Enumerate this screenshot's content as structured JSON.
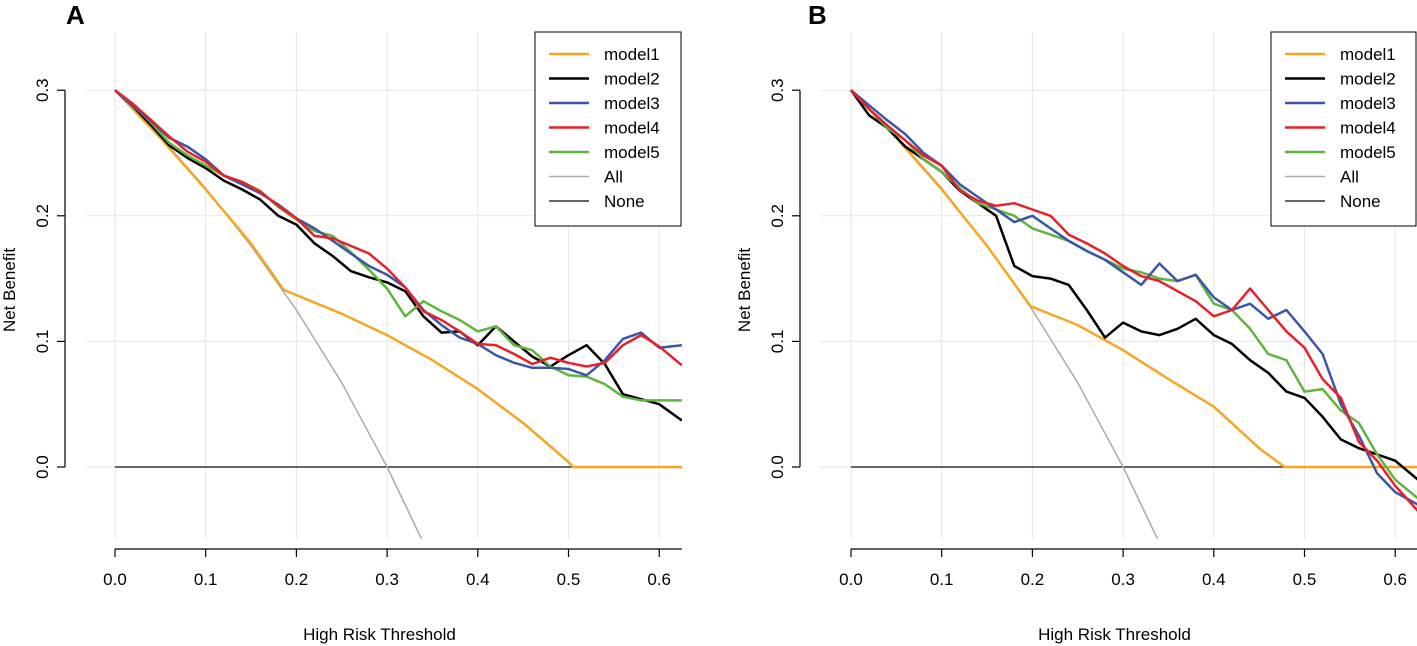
{
  "chart_data": [
    {
      "type": "line",
      "panel_label": "A",
      "xlabel": "High Risk Threshold",
      "ylabel": "Net Benefit",
      "xlim": [
        0.0,
        0.625
      ],
      "ylim": [
        -0.065,
        0.33
      ],
      "xticks": [
        0.0,
        0.1,
        0.2,
        0.3,
        0.4,
        0.5,
        0.6
      ],
      "xtick_labels": [
        "0.0",
        "0.1",
        "0.2",
        "0.3",
        "0.4",
        "0.5",
        "0.6"
      ],
      "yticks": [
        0.0,
        0.1,
        0.2,
        0.3
      ],
      "ytick_labels": [
        "0.0",
        "0.1",
        "0.2",
        "0.3"
      ],
      "grid": true,
      "legend_position": "top-right",
      "series": [
        {
          "name": "model1",
          "color": "#F5A623",
          "width": 2.5,
          "x": [
            0,
            0.05,
            0.1,
            0.15,
            0.186,
            0.25,
            0.3,
            0.35,
            0.4,
            0.45,
            0.5,
            0.505,
            0.625
          ],
          "y": [
            0.3,
            0.262,
            0.221,
            0.178,
            0.141,
            0.122,
            0.105,
            0.085,
            0.062,
            0.035,
            0.004,
            0,
            0
          ]
        },
        {
          "name": "model2",
          "color": "#000000",
          "width": 2.5,
          "x": [
            0,
            0.02,
            0.04,
            0.06,
            0.08,
            0.1,
            0.12,
            0.14,
            0.16,
            0.18,
            0.2,
            0.22,
            0.24,
            0.26,
            0.28,
            0.3,
            0.32,
            0.34,
            0.36,
            0.38,
            0.4,
            0.42,
            0.44,
            0.46,
            0.48,
            0.5,
            0.52,
            0.54,
            0.56,
            0.58,
            0.6,
            0.625
          ],
          "y": [
            0.3,
            0.287,
            0.272,
            0.256,
            0.246,
            0.238,
            0.228,
            0.221,
            0.213,
            0.2,
            0.193,
            0.178,
            0.168,
            0.156,
            0.151,
            0.147,
            0.14,
            0.12,
            0.107,
            0.108,
            0.097,
            0.112,
            0.1,
            0.088,
            0.08,
            0.089,
            0.097,
            0.082,
            0.058,
            0.054,
            0.05,
            0.037
          ]
        },
        {
          "name": "model3",
          "color": "#3B56A8",
          "width": 2.5,
          "x": [
            0,
            0.02,
            0.04,
            0.06,
            0.08,
            0.1,
            0.12,
            0.14,
            0.16,
            0.18,
            0.2,
            0.22,
            0.24,
            0.26,
            0.28,
            0.3,
            0.32,
            0.34,
            0.36,
            0.38,
            0.4,
            0.42,
            0.44,
            0.46,
            0.48,
            0.5,
            0.52,
            0.54,
            0.56,
            0.58,
            0.6,
            0.625
          ],
          "y": [
            0.3,
            0.287,
            0.275,
            0.262,
            0.255,
            0.245,
            0.232,
            0.225,
            0.218,
            0.209,
            0.198,
            0.19,
            0.18,
            0.17,
            0.16,
            0.153,
            0.143,
            0.125,
            0.113,
            0.103,
            0.098,
            0.089,
            0.083,
            0.079,
            0.079,
            0.078,
            0.073,
            0.085,
            0.102,
            0.107,
            0.095,
            0.097
          ]
        },
        {
          "name": "model4",
          "color": "#E8202A",
          "width": 2.5,
          "x": [
            0,
            0.02,
            0.04,
            0.06,
            0.08,
            0.1,
            0.12,
            0.14,
            0.16,
            0.18,
            0.2,
            0.22,
            0.24,
            0.26,
            0.28,
            0.3,
            0.32,
            0.34,
            0.36,
            0.38,
            0.4,
            0.42,
            0.44,
            0.46,
            0.48,
            0.5,
            0.52,
            0.54,
            0.56,
            0.58,
            0.6,
            0.625
          ],
          "y": [
            0.3,
            0.289,
            0.276,
            0.263,
            0.251,
            0.243,
            0.232,
            0.227,
            0.219,
            0.208,
            0.198,
            0.184,
            0.182,
            0.176,
            0.17,
            0.158,
            0.143,
            0.124,
            0.117,
            0.108,
            0.098,
            0.097,
            0.09,
            0.082,
            0.087,
            0.083,
            0.08,
            0.083,
            0.097,
            0.105,
            0.096,
            0.081
          ]
        },
        {
          "name": "model5",
          "color": "#5DB53E",
          "width": 2.5,
          "x": [
            0,
            0.02,
            0.04,
            0.06,
            0.08,
            0.1,
            0.12,
            0.14,
            0.16,
            0.18,
            0.2,
            0.22,
            0.24,
            0.26,
            0.28,
            0.3,
            0.32,
            0.34,
            0.36,
            0.38,
            0.4,
            0.42,
            0.44,
            0.46,
            0.48,
            0.5,
            0.52,
            0.54,
            0.56,
            0.58,
            0.6,
            0.625
          ],
          "y": [
            0.3,
            0.288,
            0.274,
            0.258,
            0.248,
            0.24,
            0.232,
            0.227,
            0.22,
            0.207,
            0.197,
            0.188,
            0.184,
            0.171,
            0.157,
            0.142,
            0.12,
            0.132,
            0.124,
            0.117,
            0.108,
            0.112,
            0.097,
            0.093,
            0.08,
            0.073,
            0.072,
            0.066,
            0.056,
            0.053,
            0.053,
            0.053
          ]
        },
        {
          "name": "All",
          "color": "#AAAAAA",
          "width": 1.5,
          "x": [
            0,
            0.05,
            0.1,
            0.15,
            0.2,
            0.25,
            0.3,
            0.343
          ],
          "y": [
            0.3,
            0.263,
            0.222,
            0.176,
            0.125,
            0.067,
            0,
            -0.065
          ]
        },
        {
          "name": "None",
          "color": "#333333",
          "width": 1.5,
          "x": [
            0,
            0.625
          ],
          "y": [
            0,
            0
          ]
        }
      ]
    },
    {
      "type": "line",
      "panel_label": "B",
      "xlabel": "High Risk Threshold",
      "ylabel": "Net Benefit",
      "xlim": [
        0.0,
        0.625
      ],
      "ylim": [
        -0.065,
        0.33
      ],
      "xticks": [
        0.0,
        0.1,
        0.2,
        0.3,
        0.4,
        0.5,
        0.6
      ],
      "xtick_labels": [
        "0.0",
        "0.1",
        "0.2",
        "0.3",
        "0.4",
        "0.5",
        "0.6"
      ],
      "yticks": [
        0.0,
        0.1,
        0.2,
        0.3
      ],
      "ytick_labels": [
        "0.0",
        "0.1",
        "0.2",
        "0.3"
      ],
      "grid": true,
      "legend_position": "top-right",
      "series": [
        {
          "name": "model1",
          "color": "#F5A623",
          "width": 2.5,
          "x": [
            0,
            0.05,
            0.1,
            0.15,
            0.198,
            0.25,
            0.3,
            0.35,
            0.4,
            0.45,
            0.478,
            0.625
          ],
          "y": [
            0.3,
            0.262,
            0.221,
            0.176,
            0.128,
            0.113,
            0.093,
            0.07,
            0.048,
            0.015,
            0,
            0
          ]
        },
        {
          "name": "model2",
          "color": "#000000",
          "width": 2.5,
          "x": [
            0,
            0.02,
            0.04,
            0.06,
            0.08,
            0.1,
            0.12,
            0.14,
            0.16,
            0.18,
            0.2,
            0.22,
            0.24,
            0.26,
            0.28,
            0.3,
            0.32,
            0.34,
            0.36,
            0.38,
            0.4,
            0.42,
            0.44,
            0.46,
            0.48,
            0.5,
            0.52,
            0.54,
            0.56,
            0.58,
            0.6,
            0.625
          ],
          "y": [
            0.3,
            0.28,
            0.27,
            0.255,
            0.245,
            0.235,
            0.22,
            0.21,
            0.2,
            0.16,
            0.152,
            0.15,
            0.145,
            0.125,
            0.103,
            0.115,
            0.108,
            0.105,
            0.11,
            0.118,
            0.105,
            0.098,
            0.085,
            0.075,
            0.06,
            0.055,
            0.04,
            0.022,
            0.015,
            0.01,
            0.005,
            -0.01
          ]
        },
        {
          "name": "model3",
          "color": "#3B56A8",
          "width": 2.5,
          "x": [
            0,
            0.02,
            0.04,
            0.06,
            0.08,
            0.1,
            0.12,
            0.14,
            0.16,
            0.18,
            0.2,
            0.22,
            0.24,
            0.26,
            0.28,
            0.3,
            0.32,
            0.34,
            0.36,
            0.38,
            0.4,
            0.42,
            0.44,
            0.46,
            0.48,
            0.5,
            0.52,
            0.54,
            0.56,
            0.58,
            0.6,
            0.625
          ],
          "y": [
            0.3,
            0.288,
            0.276,
            0.265,
            0.25,
            0.24,
            0.225,
            0.215,
            0.205,
            0.195,
            0.2,
            0.19,
            0.18,
            0.172,
            0.165,
            0.155,
            0.145,
            0.162,
            0.148,
            0.153,
            0.135,
            0.125,
            0.13,
            0.118,
            0.125,
            0.108,
            0.09,
            0.05,
            0.025,
            -0.005,
            -0.02,
            -0.03
          ]
        },
        {
          "name": "model4",
          "color": "#E8202A",
          "width": 2.5,
          "x": [
            0,
            0.02,
            0.04,
            0.06,
            0.08,
            0.1,
            0.12,
            0.14,
            0.16,
            0.18,
            0.2,
            0.22,
            0.24,
            0.26,
            0.28,
            0.3,
            0.32,
            0.34,
            0.36,
            0.38,
            0.4,
            0.42,
            0.44,
            0.46,
            0.48,
            0.5,
            0.52,
            0.54,
            0.56,
            0.58,
            0.6,
            0.625
          ],
          "y": [
            0.3,
            0.285,
            0.272,
            0.26,
            0.248,
            0.24,
            0.22,
            0.212,
            0.208,
            0.21,
            0.205,
            0.2,
            0.185,
            0.178,
            0.17,
            0.16,
            0.152,
            0.148,
            0.14,
            0.132,
            0.12,
            0.125,
            0.142,
            0.125,
            0.108,
            0.095,
            0.07,
            0.055,
            0.02,
            0.005,
            -0.015,
            -0.035
          ]
        },
        {
          "name": "model5",
          "color": "#5DB53E",
          "width": 2.5,
          "x": [
            0,
            0.02,
            0.04,
            0.06,
            0.08,
            0.1,
            0.12,
            0.14,
            0.16,
            0.18,
            0.2,
            0.22,
            0.24,
            0.26,
            0.28,
            0.3,
            0.32,
            0.34,
            0.36,
            0.38,
            0.4,
            0.42,
            0.44,
            0.46,
            0.48,
            0.5,
            0.52,
            0.54,
            0.56,
            0.58,
            0.6,
            0.625
          ],
          "y": [
            0.3,
            0.285,
            0.27,
            0.26,
            0.245,
            0.235,
            0.222,
            0.21,
            0.205,
            0.2,
            0.19,
            0.185,
            0.18,
            0.172,
            0.165,
            0.158,
            0.155,
            0.15,
            0.148,
            0.153,
            0.13,
            0.125,
            0.11,
            0.09,
            0.085,
            0.06,
            0.062,
            0.045,
            0.035,
            0.01,
            -0.01,
            -0.025
          ]
        },
        {
          "name": "All",
          "color": "#AAAAAA",
          "width": 1.5,
          "x": [
            0,
            0.05,
            0.1,
            0.15,
            0.2,
            0.25,
            0.3,
            0.343
          ],
          "y": [
            0.3,
            0.263,
            0.222,
            0.176,
            0.125,
            0.067,
            0,
            -0.065
          ]
        },
        {
          "name": "None",
          "color": "#333333",
          "width": 1.5,
          "x": [
            0,
            0.625
          ],
          "y": [
            0,
            0
          ]
        }
      ]
    }
  ]
}
